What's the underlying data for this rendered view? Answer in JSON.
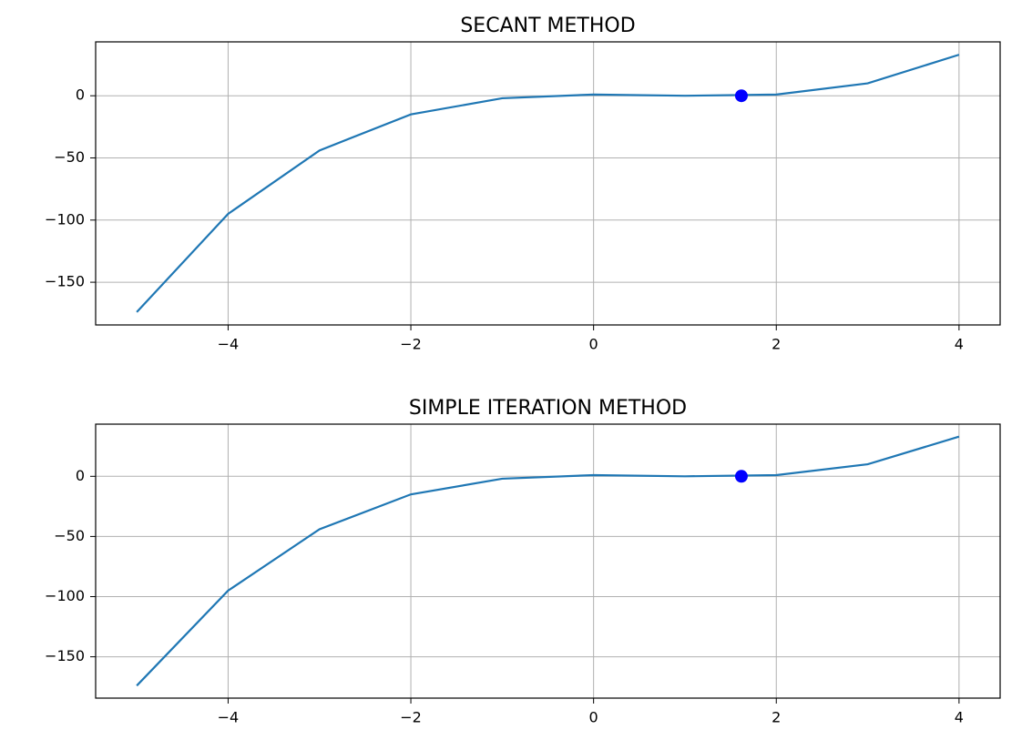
{
  "chart_data": [
    {
      "type": "line",
      "title": "SECANT METHOD",
      "x": [
        -5,
        -4,
        -3,
        -2,
        -1,
        0,
        1,
        2,
        3,
        4
      ],
      "values": [
        -174,
        -95,
        -44,
        -15,
        -2,
        1,
        0,
        1,
        10,
        33
      ],
      "color": "#1f77b4",
      "root": {
        "x": 1.618,
        "y": 0,
        "color": "#0000ff"
      },
      "xlim": [
        -5.45,
        4.45
      ],
      "ylim": [
        -184.35,
        43.35
      ],
      "xticks": [
        {
          "value": -4,
          "label": "−4"
        },
        {
          "value": -2,
          "label": "−2"
        },
        0,
        2,
        4
      ],
      "yticks": [
        {
          "value": -150,
          "label": "−150"
        },
        {
          "value": -100,
          "label": "−100"
        },
        {
          "value": -50,
          "label": "−50"
        },
        0
      ],
      "grid": true
    },
    {
      "type": "line",
      "title": "SIMPLE ITERATION METHOD",
      "x": [
        -5,
        -4,
        -3,
        -2,
        -1,
        0,
        1,
        2,
        3,
        4
      ],
      "values": [
        -174,
        -95,
        -44,
        -15,
        -2,
        1,
        0,
        1,
        10,
        33
      ],
      "color": "#1f77b4",
      "root": {
        "x": 1.618,
        "y": 0,
        "color": "#0000ff"
      },
      "xlim": [
        -5.45,
        4.45
      ],
      "ylim": [
        -184.35,
        43.35
      ],
      "xticks": [
        {
          "value": -4,
          "label": "−4"
        },
        {
          "value": -2,
          "label": "−2"
        },
        0,
        2,
        4
      ],
      "yticks": [
        {
          "value": -150,
          "label": "−150"
        },
        {
          "value": -100,
          "label": "−100"
        },
        {
          "value": -50,
          "label": "−50"
        },
        0
      ],
      "grid": true
    }
  ]
}
